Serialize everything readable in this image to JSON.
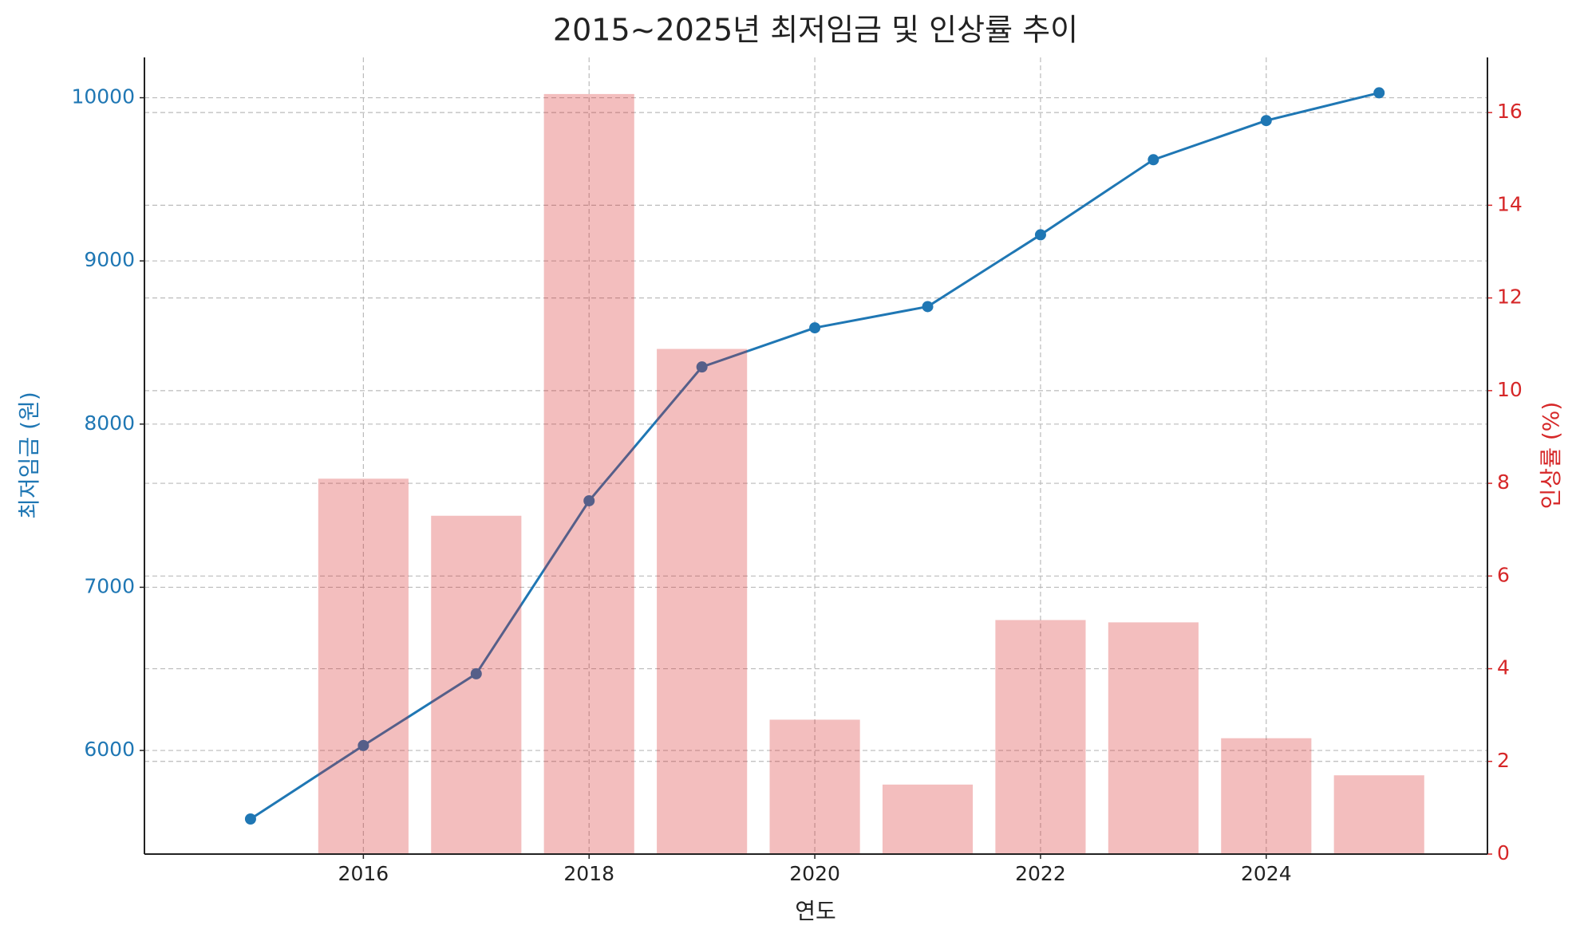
{
  "chart_data": {
    "type": "combo",
    "title": "2015~2025년 최저임금 및 인상률 추이",
    "x_label": "연도",
    "y_label": "최저임금 (원)",
    "y2_label": "인상률 (%)",
    "x": [
      2015,
      2016,
      2017,
      2018,
      2019,
      2020,
      2021,
      2022,
      2023,
      2024,
      2025
    ],
    "series": [
      {
        "type": "line",
        "color": "#1f77b4",
        "values": [
          5580,
          6030,
          6470,
          7530,
          8350,
          8590,
          8720,
          9160,
          9620,
          9860,
          10030
        ]
      },
      {
        "type": "bar",
        "axis": "y2",
        "color": "#d62728",
        "values": [
          null,
          8.1,
          7.3,
          16.4,
          10.9,
          2.9,
          1.5,
          5.05,
          5.0,
          2.5,
          1.7
        ]
      }
    ],
    "xlim": [
      2014.06,
      2025.96
    ],
    "xticks": [
      2016,
      2018,
      2020,
      2022,
      2024
    ],
    "ylim": [
      5365,
      10247
    ],
    "yticks": [
      6000,
      7000,
      8000,
      9000,
      10000
    ],
    "y2lim": [
      0,
      17.19
    ],
    "y2ticks": [
      0,
      2,
      4,
      6,
      8,
      10,
      12,
      14,
      16
    ],
    "grid": true
  }
}
